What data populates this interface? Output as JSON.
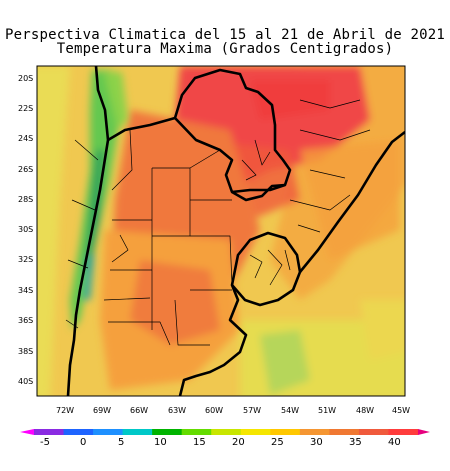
{
  "title": {
    "line1": "Perspectiva Climatica del 15 al 21 de Abril de 2021",
    "line2": "Temperatura Maxima (Grados Centigrados)"
  },
  "map": {
    "region": "South America — Argentina, Uruguay, Paraguay, southern Brazil, Chile",
    "lat_labels": [
      "20S",
      "22S",
      "24S",
      "26S",
      "28S",
      "30S",
      "32S",
      "34S",
      "36S",
      "38S",
      "40S"
    ],
    "lon_labels": [
      "72W",
      "69W",
      "66W",
      "63W",
      "60W",
      "57W",
      "54W",
      "51W",
      "48W",
      "45W"
    ],
    "lat_range": [
      -41.5,
      -19
    ],
    "lon_range": [
      -74.5,
      -45
    ]
  },
  "colorbar": {
    "tick_labels": [
      "-5",
      "0",
      "5",
      "10",
      "15",
      "20",
      "25",
      "30",
      "35",
      "40"
    ],
    "colors": [
      "#ff00ff",
      "#8a2be2",
      "#1e64ff",
      "#1e90ff",
      "#00c8c8",
      "#00b400",
      "#64dc00",
      "#c8e600",
      "#f5e600",
      "#ffc800",
      "#f59632",
      "#f07832",
      "#f05a3c",
      "#ff3c3c",
      "#e6007e"
    ]
  },
  "legend_colors": {
    "very_hot": "#f04646",
    "hot": "#f0783c",
    "warm": "#f5a03c",
    "mild": "#f0c850",
    "cool": "#e6dc50",
    "cold": "#64c850",
    "very_cold": "#28a0a0"
  }
}
